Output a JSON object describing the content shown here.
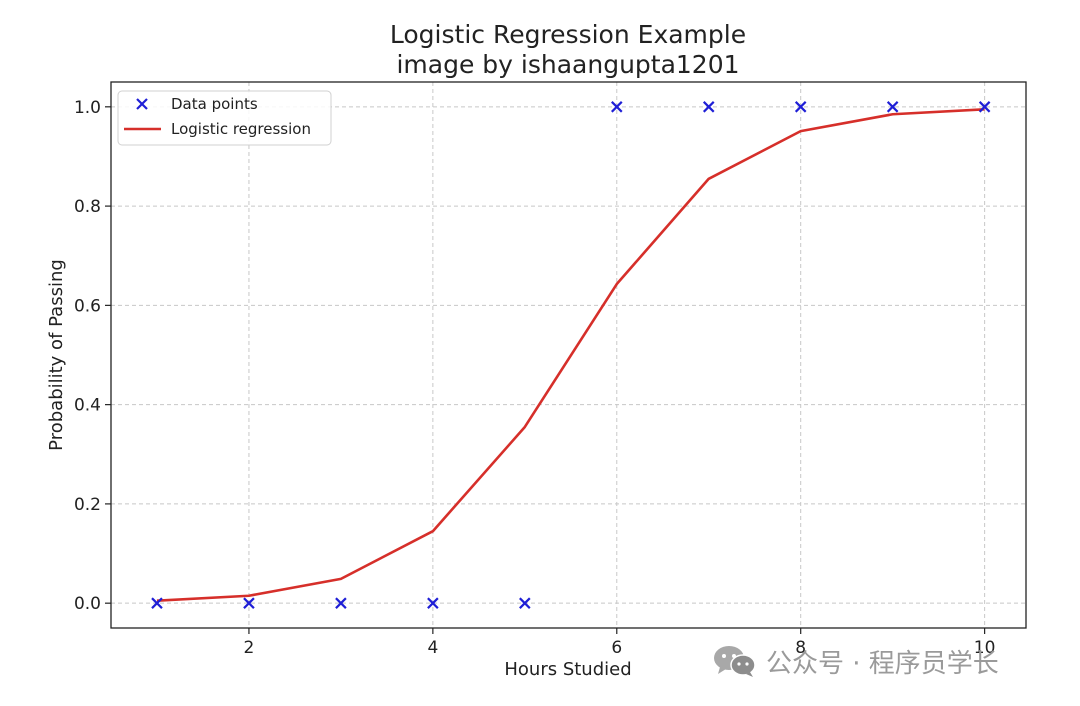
{
  "chart_data": {
    "type": "scatter+line",
    "title": "Logistic Regression Example",
    "subtitle": "image by ishaangupta1201",
    "xlabel": "Hours Studied",
    "ylabel": "Probability of Passing",
    "xlim": [
      0.5,
      10.45
    ],
    "ylim": [
      -0.05,
      1.05
    ],
    "x_ticks": [
      2,
      4,
      6,
      8,
      10
    ],
    "y_ticks": [
      0.0,
      0.2,
      0.4,
      0.6,
      0.8,
      1.0
    ],
    "grid": true,
    "legend_position": "top-left",
    "series": [
      {
        "name": "Data points",
        "kind": "scatter",
        "marker": "x",
        "color": "#1f1fd6",
        "x": [
          1,
          2,
          3,
          4,
          5,
          6,
          7,
          8,
          9,
          10
        ],
        "y": [
          0,
          0,
          0,
          0,
          0,
          1,
          1,
          1,
          1,
          1
        ]
      },
      {
        "name": "Logistic regression",
        "kind": "line",
        "color": "#d62f2a",
        "x": [
          1,
          2,
          3,
          4,
          5,
          6,
          7,
          8,
          9,
          10
        ],
        "y": [
          0.005,
          0.015,
          0.049,
          0.145,
          0.355,
          0.643,
          0.855,
          0.951,
          0.985,
          0.995
        ]
      }
    ]
  },
  "watermark": {
    "icon": "wechat-icon",
    "text": "公众号 · 程序员学长"
  }
}
